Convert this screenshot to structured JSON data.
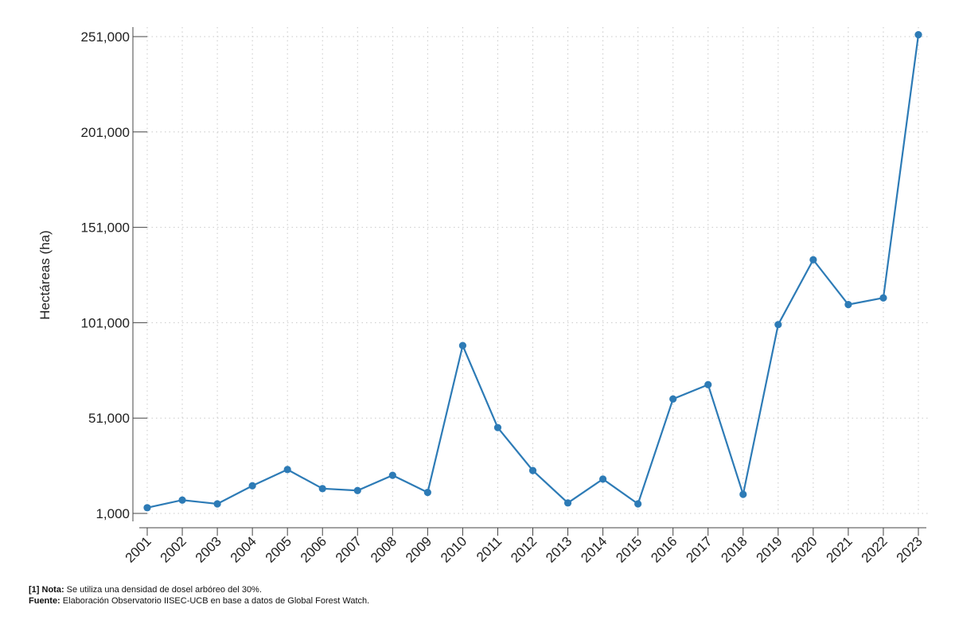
{
  "chart_data": {
    "type": "line",
    "title": "",
    "xlabel": "",
    "ylabel": "Hectáreas (ha)",
    "ylim": [
      1000,
      251000
    ],
    "yticks": [
      1000,
      51000,
      101000,
      151000,
      201000,
      251000
    ],
    "ytick_labels": [
      "1,000",
      "51,000",
      "101,000",
      "151,000",
      "201,000",
      "251,000"
    ],
    "categories": [
      "2001",
      "2002",
      "2003",
      "2004",
      "2005",
      "2006",
      "2007",
      "2008",
      "2009",
      "2010",
      "2011",
      "2012",
      "2013",
      "2014",
      "2015",
      "2016",
      "2017",
      "2018",
      "2019",
      "2020",
      "2021",
      "2022",
      "2023"
    ],
    "series": [
      {
        "name": "Hectáreas",
        "color": "#2d7bb6",
        "values": [
          4000,
          8000,
          6000,
          15500,
          24000,
          14000,
          13000,
          21000,
          12000,
          89000,
          46000,
          23500,
          6500,
          19000,
          6000,
          61000,
          68500,
          11000,
          100000,
          134000,
          110500,
          114000,
          252000
        ]
      }
    ],
    "grid": true
  },
  "footer": {
    "note_label": "[1] Nota:",
    "note_text": " Se utiliza una densidad de dosel arbóreo del 30%.",
    "source_label": "Fuente:",
    "source_text": " Elaboración Observatorio IISEC-UCB en base a datos de Global Forest Watch."
  }
}
